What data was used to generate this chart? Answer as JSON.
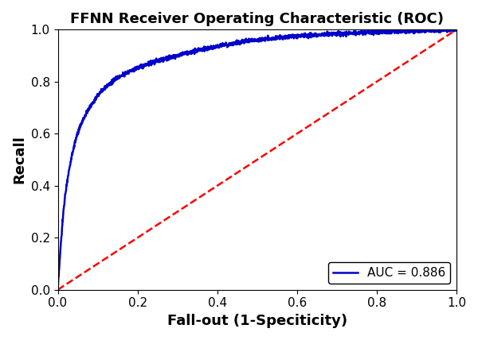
{
  "title": "FFNN Receiver Operating Characteristic (ROC)",
  "xlabel": "Fall-out (1-Speciticity)",
  "ylabel": "Recall",
  "auc": 0.886,
  "legend_label": "AUC = 0.886",
  "roc_color": "#0000CD",
  "diagonal_color": "#FF0000",
  "diagonal_style": "--",
  "roc_linewidth": 1.8,
  "diagonal_linewidth": 1.8,
  "xlim": [
    0.0,
    1.0
  ],
  "ylim": [
    0.0,
    1.0
  ],
  "title_fontsize": 13,
  "label_fontsize": 13,
  "tick_fontsize": 11,
  "legend_fontsize": 11,
  "legend_loc": "lower right",
  "figsize": [
    6.0,
    4.28
  ],
  "dpi": 100,
  "key_points_fpr": [
    0.0,
    0.02,
    0.05,
    0.08,
    0.12,
    0.18,
    0.25,
    0.35,
    0.5,
    0.65,
    0.8,
    1.0
  ],
  "key_points_tpr": [
    0.0,
    0.38,
    0.6,
    0.7,
    0.78,
    0.84,
    0.88,
    0.92,
    0.96,
    0.98,
    0.99,
    1.0
  ]
}
